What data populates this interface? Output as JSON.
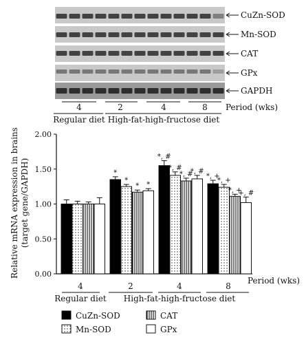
{
  "gel": {
    "bands": [
      {
        "name": "cuzn-sod-band",
        "label": "CuZn-SOD"
      },
      {
        "name": "mn-sod-band",
        "label": "Mn-SOD"
      },
      {
        "name": "cat-band",
        "label": "CAT"
      },
      {
        "name": "gpx-band",
        "label": "GPx"
      },
      {
        "name": "gapdh-band",
        "label": "GAPDH"
      }
    ],
    "period_labels": [
      "4",
      "2",
      "4",
      "8"
    ],
    "period_axis_label": "Period (wks)",
    "group_labels": [
      "Regular diet",
      "High-fat-high-fructose diet"
    ]
  },
  "chart_data": {
    "type": "bar",
    "ylabel_line1": "Relative mRNA expression in brains",
    "ylabel_line2": "(target gene/GAPDH)",
    "ylim": [
      0,
      2.0
    ],
    "yticks": [
      "0.00",
      "0.50",
      "1.00",
      "1.50",
      "2.00"
    ],
    "ytick_values": [
      0,
      0.5,
      1.0,
      1.5,
      2.0
    ],
    "categories": [
      "4",
      "2",
      "4",
      "8"
    ],
    "xlabel": "Period (wks)",
    "group_labels": [
      "Regular diet",
      "High-fat-high-fructose diet"
    ],
    "series": [
      {
        "name": "CuZn-SOD",
        "color": "#000000",
        "pattern": "solid",
        "values": [
          1.0,
          1.35,
          1.55,
          1.29
        ],
        "errors": [
          0.06,
          0.04,
          0.07,
          0.05
        ],
        "annotations": [
          "",
          "*",
          "*, #",
          "*, +"
        ]
      },
      {
        "name": "Mn-SOD",
        "color": "#ffffff",
        "pattern": "dots",
        "values": [
          1.0,
          1.25,
          1.41,
          1.24
        ],
        "errors": [
          0.04,
          0.03,
          0.05,
          0.04
        ],
        "annotations": [
          "",
          "*",
          "*, #",
          "*, +"
        ]
      },
      {
        "name": "CAT",
        "color": "#ffffff",
        "pattern": "vlines",
        "values": [
          1.0,
          1.17,
          1.33,
          1.11
        ],
        "errors": [
          0.03,
          0.03,
          0.04,
          0.03
        ],
        "annotations": [
          "",
          "*",
          "*, #",
          "*, +"
        ]
      },
      {
        "name": "GPx",
        "color": "#ffffff",
        "pattern": "none",
        "values": [
          1.0,
          1.19,
          1.36,
          1.02
        ],
        "errors": [
          0.09,
          0.03,
          0.05,
          0.08
        ],
        "annotations": [
          "",
          "*",
          "*, #",
          "+, #"
        ]
      }
    ],
    "legend_placement": "bottom-left"
  }
}
